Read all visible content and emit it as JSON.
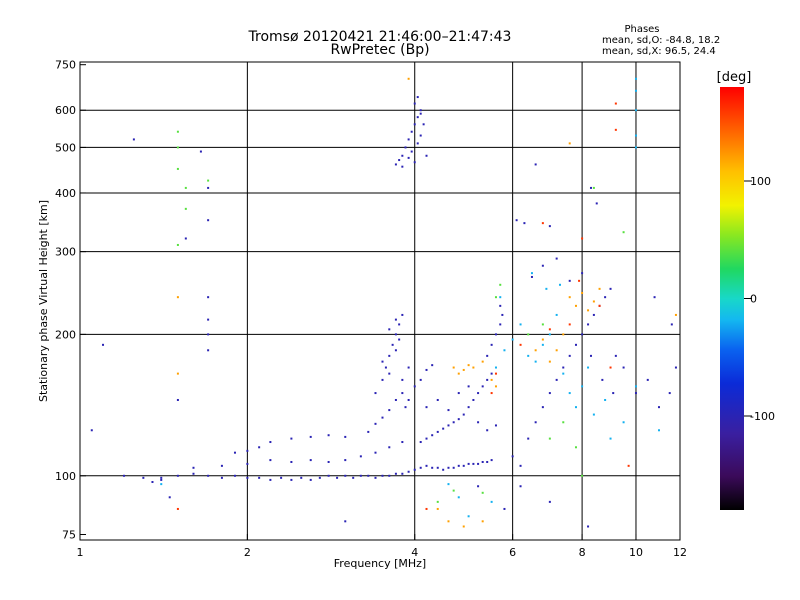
{
  "chart_data": {
    "type": "scatter",
    "title": "Tromsø 20120421 21:46:00–21:47:43",
    "subtitle": "RwPretec (Bp)",
    "xlabel": "Frequency [MHz]",
    "ylabel": "Stationary phase Virtual Height [km]",
    "x_scale": "log",
    "y_scale": "log",
    "xlim": [
      1,
      12
    ],
    "ylim": [
      73,
      760
    ],
    "x_ticks": [
      "1",
      "2",
      "4",
      "6",
      "8",
      "10",
      "12"
    ],
    "y_ticks": [
      "75",
      "100",
      "200",
      "300",
      "400",
      "500",
      "600",
      "750"
    ],
    "x_gridlines": [
      2,
      4,
      6,
      8,
      10
    ],
    "y_gridlines": [
      100,
      200,
      300,
      400,
      500,
      600
    ],
    "grid": true,
    "phases": {
      "heading": "Phases",
      "line_o": "mean, sd,O: -84.8, 18.2",
      "line_x": "mean, sd,X:  96.5, 24.4"
    },
    "colorbar": {
      "label": "[deg]",
      "range": [
        -180,
        180
      ],
      "ticks": [
        "100",
        "0",
        "-100"
      ],
      "tick_values": [
        100,
        0,
        -100
      ]
    },
    "series": [
      {
        "color_value": -100,
        "points": [
          [
            1.2,
            100
          ],
          [
            1.3,
            99
          ],
          [
            1.4,
            99
          ],
          [
            1.5,
            100
          ],
          [
            1.6,
            101
          ],
          [
            1.7,
            100
          ],
          [
            1.8,
            99
          ],
          [
            1.9,
            100
          ],
          [
            2.0,
            99
          ],
          [
            2.1,
            99
          ],
          [
            2.2,
            98
          ],
          [
            2.3,
            99
          ],
          [
            2.4,
            98
          ],
          [
            2.5,
            99
          ],
          [
            2.6,
            98
          ],
          [
            2.7,
            99
          ],
          [
            2.8,
            100
          ],
          [
            2.9,
            99
          ],
          [
            3.0,
            100
          ],
          [
            3.1,
            99
          ],
          [
            3.2,
            100
          ],
          [
            3.3,
            100
          ],
          [
            3.4,
            99
          ],
          [
            3.5,
            100
          ],
          [
            3.6,
            100
          ],
          [
            3.7,
            101
          ],
          [
            3.8,
            101
          ],
          [
            3.9,
            102
          ],
          [
            4.0,
            103
          ],
          [
            4.1,
            104
          ],
          [
            4.2,
            105
          ],
          [
            4.3,
            104
          ],
          [
            4.4,
            104
          ],
          [
            4.5,
            103
          ],
          [
            4.6,
            104
          ],
          [
            4.7,
            104
          ],
          [
            4.8,
            105
          ],
          [
            4.9,
            105
          ],
          [
            5.0,
            106
          ],
          [
            5.1,
            106
          ],
          [
            5.2,
            106
          ],
          [
            5.3,
            107
          ],
          [
            5.4,
            107
          ],
          [
            5.5,
            108
          ],
          [
            1.6,
            104
          ],
          [
            1.8,
            105
          ],
          [
            2.0,
            106
          ],
          [
            2.2,
            108
          ],
          [
            2.4,
            107
          ],
          [
            2.6,
            108
          ],
          [
            2.8,
            107
          ],
          [
            3.0,
            108
          ],
          [
            3.2,
            110
          ],
          [
            3.4,
            112
          ],
          [
            3.6,
            115
          ],
          [
            3.8,
            118
          ],
          [
            1.9,
            112
          ],
          [
            2.0,
            113
          ],
          [
            2.1,
            115
          ],
          [
            2.2,
            118
          ],
          [
            2.4,
            120
          ],
          [
            2.6,
            121
          ],
          [
            2.8,
            122
          ],
          [
            3.0,
            121
          ],
          [
            3.3,
            124
          ],
          [
            3.4,
            129
          ],
          [
            3.5,
            133
          ],
          [
            3.6,
            138
          ],
          [
            3.7,
            145
          ],
          [
            3.8,
            150
          ],
          [
            3.4,
            150
          ],
          [
            3.5,
            160
          ],
          [
            3.55,
            170
          ],
          [
            3.6,
            180
          ],
          [
            3.65,
            190
          ],
          [
            3.7,
            200
          ],
          [
            3.75,
            210
          ],
          [
            3.8,
            220
          ],
          [
            3.5,
            175
          ],
          [
            3.6,
            165
          ],
          [
            3.7,
            185
          ],
          [
            3.75,
            195
          ],
          [
            3.6,
            205
          ],
          [
            3.7,
            215
          ],
          [
            3.8,
            160
          ],
          [
            3.9,
            170
          ],
          [
            3.85,
            140
          ],
          [
            3.9,
            145
          ],
          [
            4.0,
            155
          ],
          [
            4.1,
            160
          ],
          [
            4.2,
            168
          ],
          [
            4.3,
            172
          ],
          [
            4.1,
            118
          ],
          [
            4.2,
            120
          ],
          [
            4.3,
            122
          ],
          [
            4.4,
            124
          ],
          [
            4.5,
            126
          ],
          [
            4.6,
            128
          ],
          [
            4.7,
            130
          ],
          [
            4.8,
            132
          ],
          [
            4.9,
            135
          ],
          [
            5.0,
            140
          ],
          [
            5.1,
            145
          ],
          [
            5.2,
            150
          ],
          [
            5.3,
            155
          ],
          [
            5.4,
            160
          ],
          [
            5.5,
            165
          ],
          [
            4.2,
            140
          ],
          [
            4.4,
            145
          ],
          [
            4.6,
            138
          ],
          [
            4.8,
            150
          ],
          [
            5.0,
            155
          ],
          [
            5.2,
            130
          ],
          [
            5.4,
            125
          ],
          [
            5.6,
            128
          ],
          [
            5.4,
            180
          ],
          [
            5.5,
            190
          ],
          [
            5.6,
            200
          ],
          [
            5.7,
            210
          ],
          [
            5.75,
            220
          ],
          [
            5.7,
            230
          ],
          [
            3.7,
            460
          ],
          [
            3.75,
            470
          ],
          [
            3.8,
            480
          ],
          [
            3.85,
            500
          ],
          [
            3.9,
            520
          ],
          [
            3.95,
            540
          ],
          [
            4.0,
            560
          ],
          [
            4.05,
            580
          ],
          [
            4.1,
            600
          ],
          [
            4.0,
            620
          ],
          [
            4.1,
            590
          ],
          [
            4.15,
            560
          ],
          [
            4.1,
            530
          ],
          [
            4.05,
            510
          ],
          [
            3.95,
            490
          ],
          [
            3.9,
            475
          ],
          [
            4.0,
            465
          ],
          [
            4.2,
            480
          ],
          [
            3.8,
            455
          ],
          [
            4.05,
            640
          ],
          [
            1.25,
            520
          ],
          [
            1.5,
            145
          ],
          [
            1.55,
            320
          ],
          [
            1.7,
            185
          ],
          [
            1.7,
            200
          ],
          [
            1.7,
            215
          ],
          [
            1.7,
            240
          ],
          [
            1.65,
            490
          ],
          [
            1.1,
            190
          ],
          [
            1.05,
            125
          ],
          [
            1.35,
            97
          ],
          [
            1.4,
            98
          ],
          [
            1.45,
            90
          ],
          [
            1.7,
            350
          ],
          [
            1.7,
            410
          ],
          [
            6.0,
            110
          ],
          [
            6.2,
            105
          ],
          [
            6.4,
            120
          ],
          [
            6.6,
            130
          ],
          [
            6.8,
            140
          ],
          [
            7.0,
            150
          ],
          [
            7.2,
            160
          ],
          [
            7.4,
            170
          ],
          [
            7.6,
            180
          ],
          [
            7.8,
            190
          ],
          [
            8.0,
            200
          ],
          [
            8.2,
            210
          ],
          [
            8.4,
            220
          ],
          [
            8.6,
            230
          ],
          [
            8.8,
            240
          ],
          [
            9.0,
            250
          ],
          [
            6.5,
            265
          ],
          [
            6.8,
            280
          ],
          [
            7.2,
            290
          ],
          [
            7.6,
            260
          ],
          [
            8.0,
            270
          ],
          [
            8.3,
            180
          ],
          [
            8.7,
            160
          ],
          [
            9.1,
            150
          ],
          [
            6.1,
            350
          ],
          [
            6.3,
            345
          ],
          [
            6.6,
            460
          ],
          [
            7.0,
            340
          ],
          [
            8.3,
            410
          ],
          [
            8.5,
            380
          ],
          [
            8.2,
            78
          ],
          [
            9.2,
            180
          ],
          [
            9.5,
            170
          ],
          [
            10.0,
            150
          ],
          [
            10.5,
            160
          ],
          [
            11.0,
            140
          ],
          [
            11.5,
            150
          ],
          [
            11.8,
            170
          ],
          [
            10.8,
            240
          ],
          [
            11.6,
            210
          ],
          [
            5.8,
            85
          ],
          [
            6.2,
            95
          ],
          [
            7.0,
            88
          ],
          [
            5.2,
            95
          ],
          [
            3.0,
            80
          ]
        ]
      },
      {
        "color_value": -20,
        "points": [
          [
            5.6,
            170
          ],
          [
            5.8,
            185
          ],
          [
            6.0,
            195
          ],
          [
            6.2,
            210
          ],
          [
            6.4,
            180
          ],
          [
            6.6,
            175
          ],
          [
            6.8,
            190
          ],
          [
            7.0,
            200
          ],
          [
            7.2,
            220
          ],
          [
            7.4,
            165
          ],
          [
            7.6,
            150
          ],
          [
            7.8,
            140
          ],
          [
            8.0,
            155
          ],
          [
            8.2,
            170
          ],
          [
            8.4,
            135
          ],
          [
            8.8,
            145
          ],
          [
            9.0,
            120
          ],
          [
            9.5,
            130
          ],
          [
            10.0,
            155
          ],
          [
            11.0,
            125
          ],
          [
            5.7,
            240
          ],
          [
            6.5,
            270
          ],
          [
            6.9,
            250
          ],
          [
            7.3,
            255
          ],
          [
            10.0,
            700
          ],
          [
            10.0,
            660
          ],
          [
            10.0,
            600
          ],
          [
            10.0,
            530
          ],
          [
            10.0,
            500
          ],
          [
            1.4,
            96
          ],
          [
            4.6,
            96
          ],
          [
            5.5,
            88
          ],
          [
            5.0,
            82
          ],
          [
            4.8,
            90
          ]
        ]
      },
      {
        "color_value": 40,
        "points": [
          [
            1.7,
            425
          ],
          [
            1.5,
            450
          ],
          [
            1.5,
            500
          ],
          [
            1.5,
            540
          ],
          [
            1.55,
            410
          ],
          [
            1.55,
            370
          ],
          [
            5.6,
            240
          ],
          [
            5.7,
            255
          ],
          [
            6.4,
            200
          ],
          [
            6.8,
            210
          ],
          [
            7.0,
            120
          ],
          [
            7.4,
            130
          ],
          [
            7.8,
            115
          ],
          [
            8.0,
            100
          ],
          [
            9.5,
            330
          ],
          [
            5.3,
            92
          ],
          [
            4.7,
            93
          ],
          [
            4.4,
            88
          ],
          [
            8.4,
            410
          ],
          [
            1.5,
            310
          ]
        ]
      },
      {
        "color_value": 120,
        "points": [
          [
            4.7,
            170
          ],
          [
            4.8,
            165
          ],
          [
            4.9,
            168
          ],
          [
            5.0,
            172
          ],
          [
            5.1,
            170
          ],
          [
            5.3,
            175
          ],
          [
            5.5,
            160
          ],
          [
            5.6,
            155
          ],
          [
            6.6,
            185
          ],
          [
            6.8,
            195
          ],
          [
            7.0,
            175
          ],
          [
            7.2,
            185
          ],
          [
            7.4,
            200
          ],
          [
            7.6,
            240
          ],
          [
            7.8,
            230
          ],
          [
            8.0,
            245
          ],
          [
            8.2,
            225
          ],
          [
            8.4,
            235
          ],
          [
            8.6,
            250
          ],
          [
            7.6,
            510
          ],
          [
            3.9,
            700
          ],
          [
            4.4,
            85
          ],
          [
            4.6,
            80
          ],
          [
            4.9,
            78
          ],
          [
            5.3,
            80
          ],
          [
            1.5,
            165
          ],
          [
            1.5,
            240
          ],
          [
            11.8,
            220
          ]
        ]
      },
      {
        "color_value": 160,
        "points": [
          [
            5.5,
            150
          ],
          [
            5.6,
            165
          ],
          [
            6.2,
            190
          ],
          [
            7.0,
            205
          ],
          [
            7.6,
            210
          ],
          [
            7.9,
            260
          ],
          [
            8.0,
            320
          ],
          [
            8.6,
            230
          ],
          [
            9.2,
            620
          ],
          [
            9.2,
            545
          ],
          [
            9.0,
            170
          ],
          [
            1.5,
            85
          ],
          [
            6.8,
            345
          ],
          [
            4.2,
            85
          ],
          [
            9.7,
            105
          ]
        ]
      }
    ]
  }
}
